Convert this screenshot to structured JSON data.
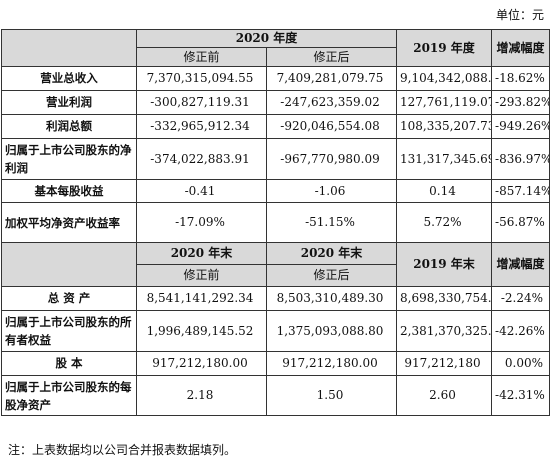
{
  "unit": "单位：元",
  "section1": {
    "header_period": "2020 年度",
    "header_before": "修正前",
    "header_after": "修正后",
    "header_prev": "2019 年度",
    "header_change": "增减幅度",
    "rows": [
      {
        "label": "营业总收入",
        "before": "7,370,315,094.55",
        "after": "7,409,281,079.75",
        "prev": "9,104,342,088.84",
        "change": "-18.62%"
      },
      {
        "label": "营业利润",
        "before": "-300,827,119.31",
        "after": "-247,623,359.02",
        "prev": "127,761,119.07",
        "change": "-293.82%"
      },
      {
        "label": "利润总额",
        "before": "-332,965,912.34",
        "after": "-920,046,554.08",
        "prev": "108,335,207.73",
        "change": "-949.26%"
      },
      {
        "label": "归属于上市公司股东的净利润",
        "before": "-374,022,883.91",
        "after": "-967,770,980.09",
        "prev": "131,317,345.69",
        "change": "-836.97%"
      },
      {
        "label": "基本每股收益",
        "before": "-0.41",
        "after": "-1.06",
        "prev": "0.14",
        "change": "-857.14%"
      },
      {
        "label": "加权平均净资产收益率",
        "before": "-17.09%",
        "after": "-51.15%",
        "prev": "5.72%",
        "change": "-56.87%"
      }
    ]
  },
  "section2": {
    "header_before_period": "2020 年末",
    "header_after_period": "2020 年末",
    "header_before": "修正前",
    "header_after": "修正后",
    "header_prev": "2019 年末",
    "header_change": "增减幅度",
    "rows": [
      {
        "label": "总 资 产",
        "before": "8,541,141,292.34",
        "after": "8,503,310,489.30",
        "prev": "8,698,330,754.03",
        "change": "-2.24%"
      },
      {
        "label": "归属于上市公司股东的所有者权益",
        "before": "1,996,489,145.52",
        "after": "1,375,093,088.80",
        "prev": "2,381,370,325.00",
        "change": "-42.26%"
      },
      {
        "label": "股 本",
        "before": "917,212,180.00",
        "after": "917,212,180.00",
        "prev": "917,212,180",
        "change": "0.00%"
      },
      {
        "label": "归属于上市公司股东的每股净资产",
        "before": "2.18",
        "after": "1.50",
        "prev": "2.60",
        "change": "-42.31%"
      }
    ]
  },
  "note": "注：上表数据均以公司合并报表数据填列。"
}
